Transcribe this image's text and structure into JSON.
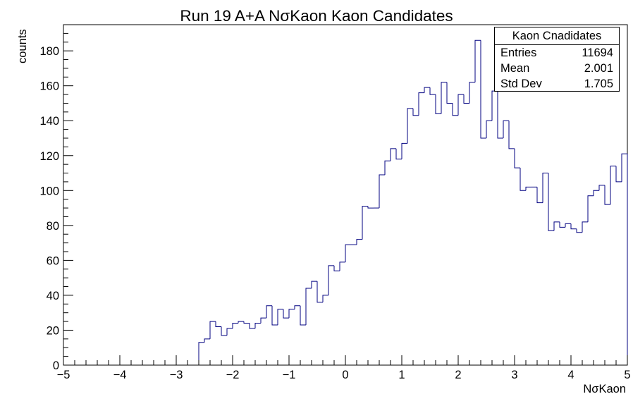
{
  "chart_data": {
    "type": "histogram",
    "title": "Run 19 A+A NσKaon Kaon Candidates",
    "xlabel": "NσKaon",
    "ylabel": "counts",
    "xlim": [
      -5,
      5
    ],
    "ylim": [
      0,
      195
    ],
    "bin_width": 0.1,
    "line_color": "#000080",
    "xticks": [
      -5,
      -4,
      -3,
      -2,
      -1,
      0,
      1,
      2,
      3,
      4,
      5
    ],
    "yticks": [
      0,
      20,
      40,
      60,
      80,
      100,
      120,
      140,
      160,
      180
    ],
    "xticklabels": [
      "−5",
      "−4",
      "−3",
      "−2",
      "−1",
      "0",
      "1",
      "2",
      "3",
      "4",
      "5"
    ],
    "yticklabels": [
      "0",
      "20",
      "40",
      "60",
      "80",
      "100",
      "120",
      "140",
      "160",
      "180"
    ],
    "x": [
      -2.55,
      -2.45,
      -2.35,
      -2.25,
      -2.15,
      -2.05,
      -1.95,
      -1.85,
      -1.75,
      -1.65,
      -1.55,
      -1.45,
      -1.35,
      -1.25,
      -1.15,
      -1.05,
      -0.95,
      -0.85,
      -0.75,
      -0.65,
      -0.55,
      -0.45,
      -0.35,
      -0.25,
      -0.15,
      -0.05,
      0.05,
      0.15,
      0.25,
      0.35,
      0.45,
      0.55,
      0.65,
      0.75,
      0.85,
      0.95,
      1.05,
      1.15,
      1.25,
      1.35,
      1.45,
      1.55,
      1.65,
      1.75,
      1.85,
      1.95,
      2.05,
      2.15,
      2.25,
      2.35,
      2.45,
      2.55,
      2.65,
      2.75,
      2.85,
      2.95,
      3.05,
      3.15,
      3.25,
      3.35,
      3.45,
      3.55,
      3.65,
      3.75,
      3.85,
      3.95,
      4.05,
      4.15,
      4.25,
      4.35,
      4.45,
      4.55,
      4.65,
      4.75,
      4.85,
      4.95
    ],
    "values": [
      13,
      15,
      25,
      22,
      17,
      21,
      24,
      25,
      24,
      21,
      24,
      27,
      34,
      23,
      32,
      27,
      32,
      34,
      23,
      44,
      48,
      36,
      40,
      57,
      54,
      59,
      69,
      69,
      72,
      91,
      90,
      90,
      109,
      117,
      124,
      118,
      127,
      147,
      143,
      156,
      159,
      155,
      144,
      162,
      150,
      143,
      155,
      150,
      162,
      186,
      130,
      140,
      157,
      130,
      140,
      124,
      113,
      100,
      102,
      102,
      93,
      110,
      77,
      82,
      79,
      81,
      78,
      76,
      82,
      97,
      100,
      103,
      92,
      114,
      105,
      121
    ]
  },
  "stats": {
    "title": "Kaon Cnadidates",
    "rows": [
      {
        "key": "Entries",
        "value": "11694"
      },
      {
        "key": "Mean",
        "value": "2.001"
      },
      {
        "key": "Std Dev",
        "value": "1.705"
      }
    ]
  }
}
